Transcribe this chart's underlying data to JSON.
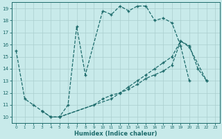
{
  "xlabel": "Humidex (Indice chaleur)",
  "xlim": [
    -0.5,
    23.5
  ],
  "ylim": [
    9.5,
    19.5
  ],
  "xticks": [
    0,
    1,
    2,
    3,
    4,
    5,
    6,
    7,
    8,
    9,
    10,
    11,
    12,
    13,
    14,
    15,
    16,
    17,
    18,
    19,
    20,
    21,
    22,
    23
  ],
  "yticks": [
    10,
    11,
    12,
    13,
    14,
    15,
    16,
    17,
    18,
    19
  ],
  "bg_color": "#c8eaea",
  "grid_color": "#aacece",
  "line_color": "#1d6b6b",
  "line1_x": [
    0,
    1,
    2,
    3,
    4,
    5,
    6,
    7,
    8,
    10,
    11,
    12,
    13,
    14,
    15,
    16,
    17,
    18,
    19,
    20
  ],
  "line1_y": [
    15.5,
    11.5,
    11.0,
    10.5,
    10.0,
    10.0,
    11.0,
    17.5,
    13.5,
    18.8,
    18.5,
    19.2,
    18.8,
    19.2,
    19.2,
    18.0,
    18.2,
    17.8,
    15.9,
    13.0
  ],
  "line2_x": [
    3,
    4,
    5,
    11,
    12,
    13,
    14,
    15,
    16,
    17,
    18,
    19,
    20,
    21,
    22
  ],
  "line2_y": [
    10.5,
    10.0,
    10.0,
    11.5,
    12.0,
    12.5,
    13.0,
    13.5,
    14.0,
    14.5,
    15.0,
    16.3,
    15.9,
    14.0,
    13.0
  ],
  "line3_x": [
    5,
    9,
    10,
    11,
    12,
    13,
    14,
    15,
    16,
    17,
    18,
    19,
    20,
    22
  ],
  "line3_y": [
    10.0,
    11.0,
    11.5,
    11.8,
    12.0,
    12.3,
    12.7,
    13.2,
    13.5,
    13.8,
    14.3,
    16.3,
    15.8,
    13.0
  ]
}
